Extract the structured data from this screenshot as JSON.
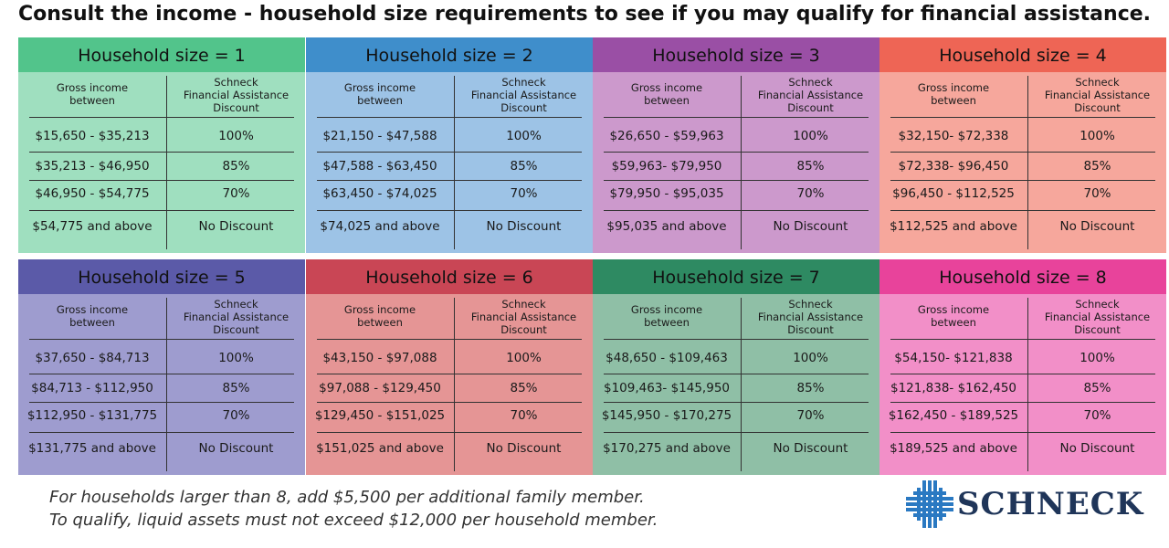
{
  "title": "Consult the income - household size requirements to see if you may qualify for financial assistance.",
  "column_headers": {
    "left_line1": "Gross income",
    "left_line2": "between",
    "right_line1": "Schneck",
    "right_line2": "Financial Assistance",
    "right_line3": "Discount"
  },
  "cards": [
    {
      "header": "Household size = 1",
      "header_color": "#52c48b",
      "body_color": "#9fdfbf",
      "rows": [
        {
          "income": "$15,650 - $35,213",
          "discount": "100%"
        },
        {
          "income": "$35,213 - $46,950",
          "discount": "85%"
        },
        {
          "income": "$46,950 - $54,775",
          "discount": "70%"
        },
        {
          "income": "$54,775 and above",
          "discount": "No Discount"
        }
      ]
    },
    {
      "header": "Household size = 2",
      "header_color": "#3f8ecb",
      "body_color": "#9dc3e6",
      "rows": [
        {
          "income": "$21,150 - $47,588",
          "discount": "100%"
        },
        {
          "income": "$47,588 - $63,450",
          "discount": "85%"
        },
        {
          "income": "$63,450 - $74,025",
          "discount": "70%"
        },
        {
          "income": "$74,025 and above",
          "discount": "No Discount"
        }
      ]
    },
    {
      "header": "Household size = 3",
      "header_color": "#9a4fa5",
      "body_color": "#cc99cc",
      "rows": [
        {
          "income": "$26,650 - $59,963",
          "discount": "100%"
        },
        {
          "income": "$59,963- $79,950",
          "discount": "85%"
        },
        {
          "income": "$79,950 - $95,035",
          "discount": "70%"
        },
        {
          "income": "$95,035 and above",
          "discount": "No Discount"
        }
      ]
    },
    {
      "header": "Household size = 4",
      "header_color": "#ee6555",
      "body_color": "#f6a79c",
      "rows": [
        {
          "income": "$32,150- $72,338",
          "discount": "100%"
        },
        {
          "income": "$72,338- $96,450",
          "discount": "85%"
        },
        {
          "income": "$96,450 - $112,525",
          "discount": "70%"
        },
        {
          "income": "$112,525 and above",
          "discount": "No Discount"
        }
      ]
    },
    {
      "header": "Household size = 5",
      "header_color": "#5b5aa8",
      "body_color": "#9e9ccf",
      "rows": [
        {
          "income": "$37,650 - $84,713",
          "discount": "100%"
        },
        {
          "income": "$84,713 - $112,950",
          "discount": "85%"
        },
        {
          "income": "$112,950 - $131,775",
          "discount": "70%"
        },
        {
          "income": "$131,775 and above",
          "discount": "No Discount"
        }
      ]
    },
    {
      "header": "Household size = 6",
      "header_color": "#c94655",
      "body_color": "#e59595",
      "rows": [
        {
          "income": "$43,150 - $97,088",
          "discount": "100%"
        },
        {
          "income": "$97,088 - $129,450",
          "discount": "85%"
        },
        {
          "income": "$129,450 - $151,025",
          "discount": "70%"
        },
        {
          "income": "$151,025 and above",
          "discount": "No Discount"
        }
      ]
    },
    {
      "header": "Household size = 7",
      "header_color": "#2e8a62",
      "body_color": "#8fbfa6",
      "rows": [
        {
          "income": "$48,650 - $109,463",
          "discount": "100%"
        },
        {
          "income": "$109,463- $145,950",
          "discount": "85%"
        },
        {
          "income": "$145,950 - $170,275",
          "discount": "70%"
        },
        {
          "income": "$170,275 and above",
          "discount": "No Discount"
        }
      ]
    },
    {
      "header": "Household size = 8",
      "header_color": "#e8439b",
      "body_color": "#f28fc8",
      "rows": [
        {
          "income": "$54,150- $121,838",
          "discount": "100%"
        },
        {
          "income": "$121,838- $162,450",
          "discount": "85%"
        },
        {
          "income": "$162,450 - $189,525",
          "discount": "70%"
        },
        {
          "income": "$189,525 and above",
          "discount": "No Discount"
        }
      ]
    }
  ],
  "footnotes": [
    "For households larger than 8, add $5,500 per additional family member.",
    "To qualify, liquid assets must not exceed $12,000 per household member."
  ],
  "logo": {
    "text": "SCHNECK",
    "color": "#1f3559",
    "icon": "schneck-cross-logo-icon"
  }
}
